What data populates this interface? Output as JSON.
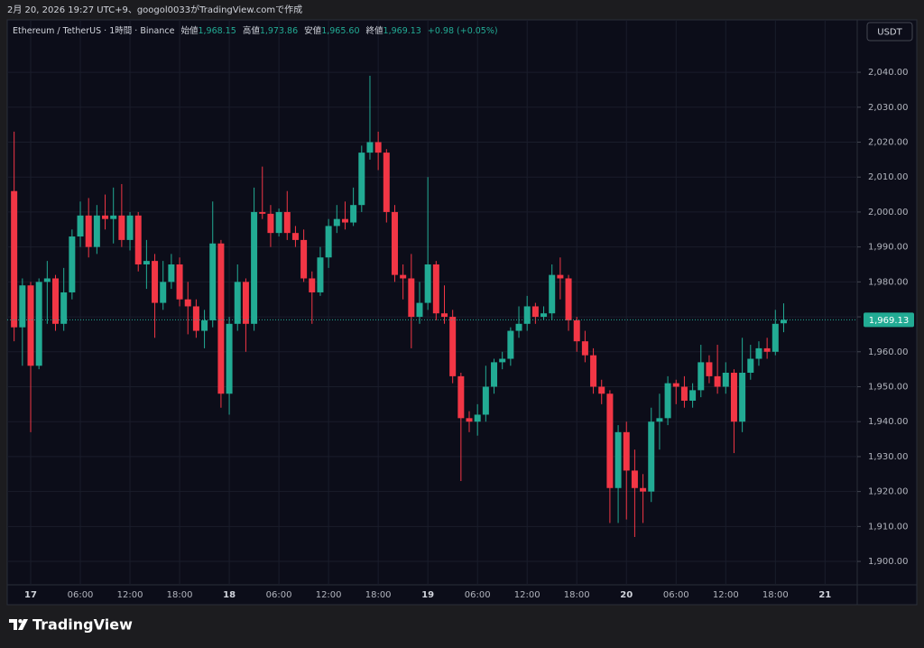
{
  "top_bar": "2月 20, 2026 19:27 UTC+9、googol0033がTradingView.comで作成",
  "logo": "TradingView",
  "currency_button": "USDT",
  "chart_data": {
    "type": "candlestick",
    "header": {
      "symbol": "Ethereum / TetherUS · 1時間 · Binance",
      "open_label": "始値",
      "open": "1,968.15",
      "high_label": "高値",
      "high": "1,973.86",
      "low_label": "安値",
      "low": "1,965.60",
      "close_label": "終値",
      "close": "1,969.13",
      "change": "+0.98 (+0.05%)"
    },
    "categories": [
      null,
      null,
      "17",
      null,
      null,
      null,
      null,
      null,
      "06:00",
      null,
      null,
      null,
      null,
      null,
      "12:00",
      null,
      null,
      null,
      null,
      null,
      "18:00",
      null,
      null,
      null,
      null,
      null,
      "18",
      null,
      null,
      null,
      null,
      null,
      "06:00",
      null,
      null,
      null,
      null,
      null,
      "12:00",
      null,
      null,
      null,
      null,
      null,
      "18:00",
      null,
      null,
      null,
      null,
      null,
      "19",
      null,
      null,
      null,
      null,
      null,
      "06:00",
      null,
      null,
      null,
      null,
      null,
      "12:00",
      null,
      null,
      null,
      null,
      null,
      "18:00",
      null,
      null,
      null,
      null,
      null,
      "20",
      null,
      null,
      null,
      null,
      null,
      "06:00",
      null,
      null,
      null,
      null,
      null,
      "12:00",
      null,
      null,
      null,
      null,
      null,
      "18:00",
      null,
      null,
      null,
      null,
      null,
      "21"
    ],
    "open": [
      2006,
      1967,
      1979,
      1956,
      1980,
      1981,
      1968,
      1977,
      1993,
      1999,
      1990,
      1999,
      1998,
      1999,
      1992,
      1999,
      1985,
      1986,
      1974,
      1980,
      1985,
      1975,
      1973,
      1966,
      1969,
      1991,
      1948,
      1968,
      1980,
      1968,
      2000,
      1999.5,
      1994,
      2000,
      1994,
      1992,
      1981,
      1977,
      1987,
      1996,
      1998,
      1997,
      2002,
      2017,
      2020,
      2017,
      2000,
      1982,
      1981,
      1970,
      1974,
      1985,
      1971,
      1970,
      1953,
      1941,
      1940,
      1942,
      1950,
      1957,
      1958,
      1966,
      1968,
      1973,
      1970,
      1971,
      1982,
      1981,
      1969,
      1963,
      1959,
      1950,
      1948,
      1921,
      1937,
      1926,
      1921,
      1920,
      1940,
      1941,
      1951,
      1950,
      1946,
      1949,
      1957,
      1953,
      1950,
      1954,
      1940,
      1954,
      1958,
      1961,
      1960,
      1968.15,
      null,
      null,
      null,
      null,
      null
    ],
    "high": [
      2023,
      1981,
      1980,
      1981,
      1986,
      1982,
      1984,
      1995,
      2003,
      2004,
      2002,
      2005,
      2007,
      2008,
      2000,
      2000,
      1992,
      1988,
      1986,
      1988,
      1987,
      1980,
      1975,
      1972,
      2003,
      1992,
      1970,
      1985,
      1981,
      2007,
      2013,
      2002,
      2001,
      2006,
      1996,
      1995,
      1983,
      1990,
      1998,
      2002,
      2003,
      2007,
      2019,
      2039,
      2023,
      2018,
      2002,
      1985,
      1988,
      1980,
      2010,
      1986,
      1979,
      1972,
      1954,
      1943,
      1945,
      1956,
      1958,
      1960,
      1967,
      1973,
      1976,
      1974,
      1973,
      1985,
      1987,
      1982,
      1970,
      1966,
      1961,
      1952,
      1949,
      1939,
      1940,
      1932,
      1925,
      1944,
      1948,
      1953,
      1952,
      1953,
      1951,
      1962,
      1959,
      1962,
      1957,
      1955,
      1964,
      1962,
      1963,
      1964,
      1972,
      1973.86,
      null,
      null,
      null,
      null,
      null
    ],
    "low": [
      1963,
      1956,
      1937,
      1955,
      1968,
      1966,
      1966,
      1975,
      1990,
      1987,
      1988,
      1995,
      1991,
      1990,
      1989,
      1983,
      1978,
      1964,
      1972,
      1978,
      1973,
      1965,
      1964,
      1961,
      1967,
      1944,
      1942,
      1966,
      1960,
      1966,
      1998,
      1990,
      1993,
      1992,
      1990,
      1980,
      1968,
      1976,
      1984,
      1994,
      1995,
      1996,
      2000,
      2015,
      2012,
      1997,
      1980,
      1975,
      1961,
      1968,
      1972,
      1969,
      1968,
      1951,
      1923,
      1937,
      1936,
      1940,
      1948,
      1955,
      1956,
      1964,
      1966,
      1968,
      1969,
      1969,
      1975,
      1966,
      1960,
      1957,
      1948,
      1945,
      1911,
      1911,
      1912,
      1907,
      1911,
      1917,
      1932,
      1939,
      1945,
      1944,
      1944,
      1947,
      1951,
      1948,
      1948,
      1931,
      1937,
      1952,
      1956,
      1958,
      1959,
      1965.6,
      null,
      null,
      null,
      null,
      null
    ],
    "close": [
      1967,
      1979,
      1956,
      1980,
      1981,
      1968,
      1977,
      1993,
      1999,
      1990,
      1999,
      1998,
      1999,
      1992,
      1999,
      1985,
      1986,
      1974,
      1980,
      1985,
      1975,
      1973,
      1966,
      1969,
      1991,
      1948,
      1968,
      1980,
      1968,
      2000,
      1999.5,
      1994,
      2000,
      1994,
      1992,
      1981,
      1977,
      1987,
      1996,
      1998,
      1997,
      2002,
      2017,
      2020,
      2017,
      2000,
      1982,
      1981,
      1970,
      1974,
      1985,
      1971,
      1970,
      1953,
      1941,
      1940,
      1942,
      1950,
      1957,
      1958,
      1966,
      1968,
      1973,
      1970,
      1971,
      1982,
      1981,
      1969,
      1963,
      1959,
      1950,
      1948,
      1921,
      1937,
      1926,
      1921,
      1920,
      1940,
      1941,
      1951,
      1950,
      1946,
      1949,
      1957,
      1953,
      1950,
      1954,
      1940,
      1954,
      1958,
      1961,
      1960,
      1968,
      1969.13,
      null,
      null,
      null,
      null,
      null
    ],
    "up_color": "#22ab94",
    "down_color": "#f23645",
    "ylim": [
      1893.3,
      2055
    ],
    "yticks": [
      {
        "value": 1900,
        "label": "1,900.00"
      },
      {
        "value": 1910,
        "label": "1,910.00"
      },
      {
        "value": 1920,
        "label": "1,920.00"
      },
      {
        "value": 1930,
        "label": "1,930.00"
      },
      {
        "value": 1940,
        "label": "1,940.00"
      },
      {
        "value": 1950,
        "label": "1,950.00"
      },
      {
        "value": 1960,
        "label": "1,960.00"
      },
      {
        "value": 1970,
        "label": "1,970.00"
      },
      {
        "value": 1980,
        "label": "1,980.00"
      },
      {
        "value": 1990,
        "label": "1,990.00"
      },
      {
        "value": 2000,
        "label": "2,000.00"
      },
      {
        "value": 2010,
        "label": "2,010.00"
      },
      {
        "value": 2020,
        "label": "2,020.00"
      },
      {
        "value": 2030,
        "label": "2,030.00"
      },
      {
        "value": 2040,
        "label": "2,040.00"
      }
    ],
    "grid": true
  }
}
